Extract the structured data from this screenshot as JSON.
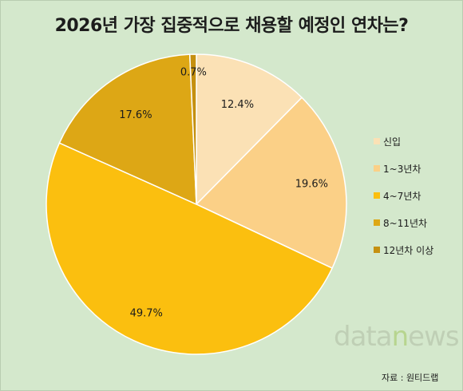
{
  "chart_data": {
    "type": "pie",
    "title": "2026년 가장 집중적으로 채용할 예정인 연차는?",
    "categories": [
      "신입",
      "1~3년차",
      "4~7년차",
      "8~11년차",
      "12년차 이상"
    ],
    "values": [
      12.4,
      19.6,
      49.7,
      17.6,
      0.7
    ],
    "value_labels": [
      "12.4%",
      "19.6%",
      "49.7%",
      "17.6%",
      "0.7%"
    ],
    "colors": [
      "#fbe1b5",
      "#fbd087",
      "#fbbf0f",
      "#dda715",
      "#c59010"
    ],
    "legend_position": "right",
    "start_angle": "12 o'clock, clockwise"
  },
  "watermark": {
    "part1": "data",
    "part2": "n",
    "part3": "ews"
  },
  "source": "자료 : 원티드랩"
}
